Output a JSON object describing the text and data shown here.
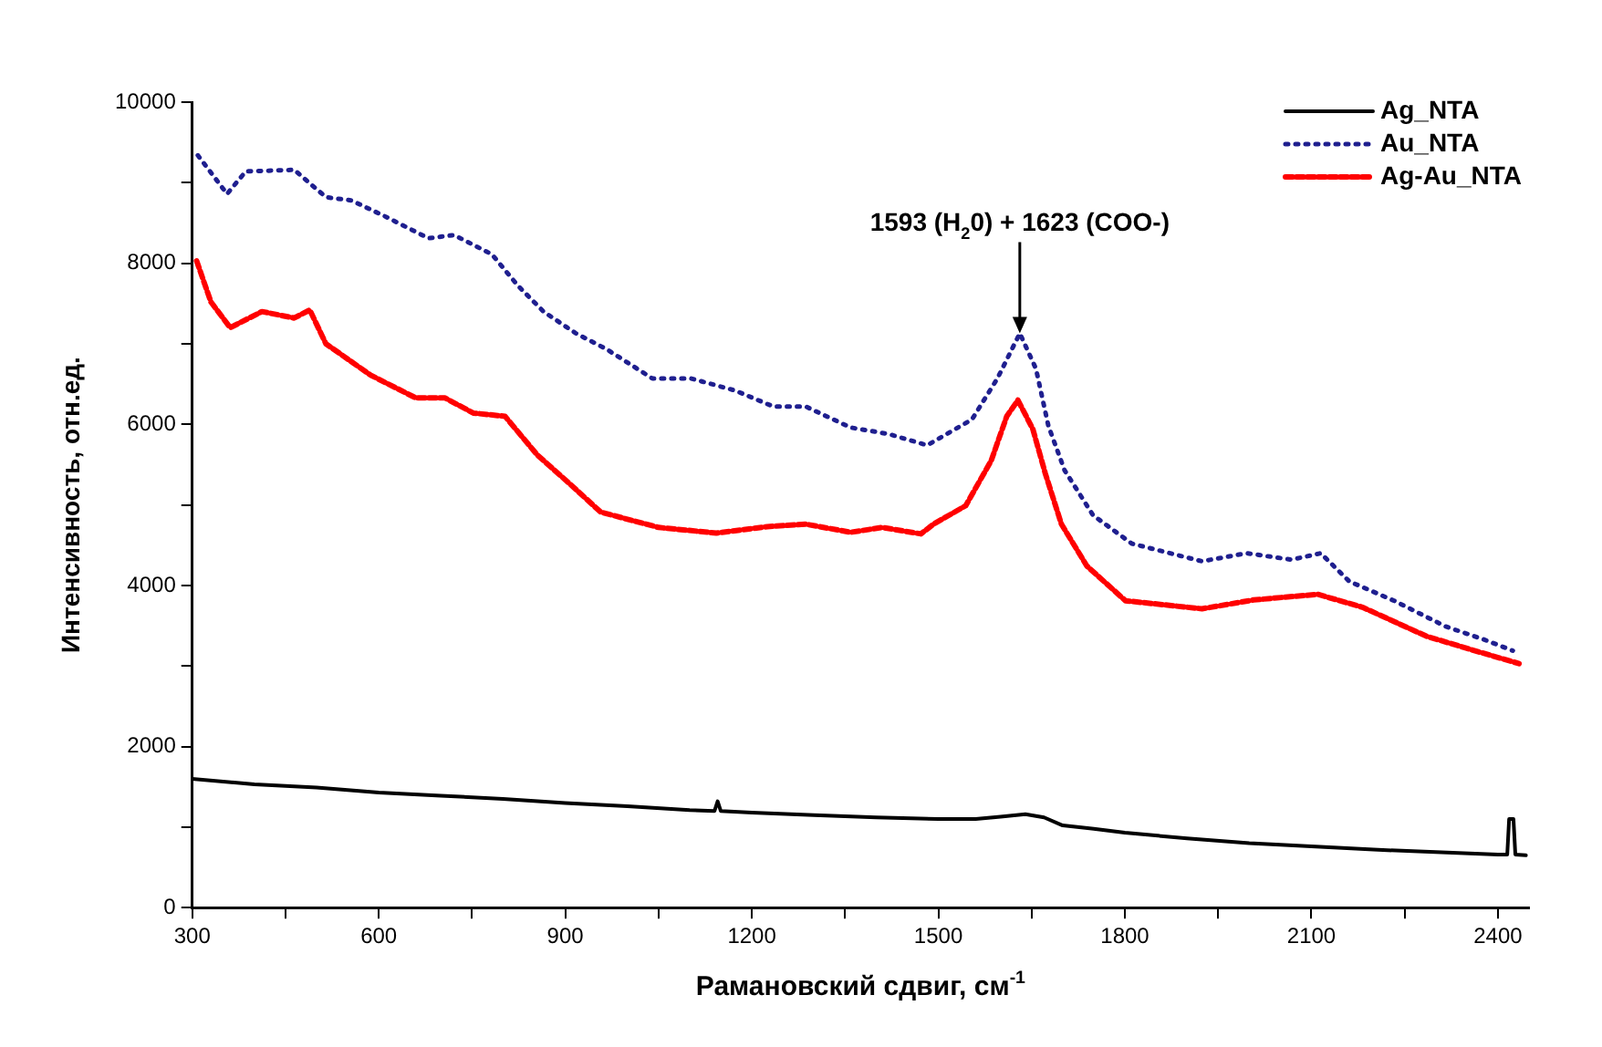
{
  "chart_data": {
    "type": "line",
    "xlabel": "Рамановский сдвиг, см$^{-1}$",
    "ylabel": "Интенсивность, отн.ед.",
    "annotations": [
      {
        "text": "1593 (H$_{2}$0) + 1623 (COO-)",
        "x": 1631,
        "y": 7130
      }
    ],
    "xlim": [
      300,
      2450
    ],
    "xticks": [
      300,
      {
        "value": 450,
        "label": null
      },
      600,
      {
        "value": 750,
        "label": null
      },
      900,
      {
        "value": 1050,
        "label": null
      },
      1200,
      {
        "value": 1350,
        "label": null
      },
      1500,
      {
        "value": 1650,
        "label": null
      },
      1800,
      {
        "value": 1950,
        "label": null
      },
      2100,
      {
        "value": 2250,
        "label": null
      },
      2400
    ],
    "ylim": [
      0,
      10000
    ],
    "yticks": [
      0,
      {
        "value": 1000,
        "label": null
      },
      2000,
      {
        "value": 3000,
        "label": null
      },
      4000,
      {
        "value": 5000,
        "label": null
      },
      6000,
      {
        "value": 7000,
        "label": null
      },
      8000,
      {
        "value": 9000,
        "label": null
      },
      10000
    ],
    "grid": false,
    "legend": "top right",
    "marker": "none",
    "series": [
      {
        "name": "Ag_NTA",
        "color": "#000000",
        "line_style": "solid",
        "x": [
          300,
          400,
          500,
          600,
          700,
          800,
          900,
          1000,
          1100,
          1140,
          1145,
          1150,
          1200,
          1300,
          1400,
          1500,
          1560,
          1600,
          1640,
          1670,
          1700,
          1750,
          1800,
          1900,
          2000,
          2100,
          2200,
          2300,
          2400,
          2415,
          2418,
          2425,
          2428,
          2445
        ],
        "values": [
          1600,
          1530,
          1490,
          1430,
          1390,
          1350,
          1300,
          1260,
          1210,
          1200,
          1320,
          1200,
          1180,
          1150,
          1120,
          1100,
          1100,
          1130,
          1160,
          1120,
          1020,
          980,
          930,
          860,
          800,
          760,
          720,
          690,
          660,
          660,
          1100,
          1100,
          660,
          650
        ]
      },
      {
        "name": "Au_NTA",
        "color": "#1f1f8f",
        "line_style": "dotted",
        "x": [
          309,
          356,
          386,
          464,
          515,
          556,
          608,
          680,
          721,
          782,
          824,
          865,
          917,
          967,
          1040,
          1102,
          1173,
          1235,
          1287,
          1359,
          1420,
          1482,
          1554,
          1595,
          1631,
          1657,
          1677,
          1703,
          1749,
          1811,
          1924,
          1996,
          2068,
          2115,
          2161,
          2233,
          2316,
          2377,
          2424
        ],
        "values": [
          9340,
          8860,
          9140,
          9160,
          8820,
          8780,
          8590,
          8310,
          8350,
          8110,
          7720,
          7400,
          7130,
          6930,
          6570,
          6570,
          6420,
          6220,
          6220,
          5960,
          5880,
          5740,
          6060,
          6570,
          7130,
          6690,
          5980,
          5430,
          4870,
          4520,
          4300,
          4400,
          4320,
          4400,
          4050,
          3810,
          3490,
          3330,
          3190
        ]
      },
      {
        "name": "Ag-Au_NTA",
        "color": "#ff0000",
        "line_style": "dashed",
        "x": [
          307,
          330,
          361,
          412,
          464,
          489,
          515,
          587,
          659,
          706,
          752,
          803,
          855,
          906,
          957,
          1050,
          1143,
          1225,
          1287,
          1359,
          1410,
          1472,
          1492,
          1544,
          1585,
          1610,
          1628,
          1652,
          1672,
          1698,
          1739,
          1801,
          1924,
          2007,
          2110,
          2182,
          2285,
          2367,
          2434
        ],
        "values": [
          8030,
          7520,
          7200,
          7400,
          7320,
          7420,
          7000,
          6610,
          6330,
          6330,
          6140,
          6100,
          5620,
          5270,
          4910,
          4720,
          4650,
          4730,
          4760,
          4660,
          4720,
          4640,
          4760,
          4990,
          5550,
          6100,
          6300,
          5940,
          5390,
          4760,
          4240,
          3810,
          3710,
          3820,
          3890,
          3730,
          3370,
          3180,
          3030
        ]
      }
    ]
  }
}
